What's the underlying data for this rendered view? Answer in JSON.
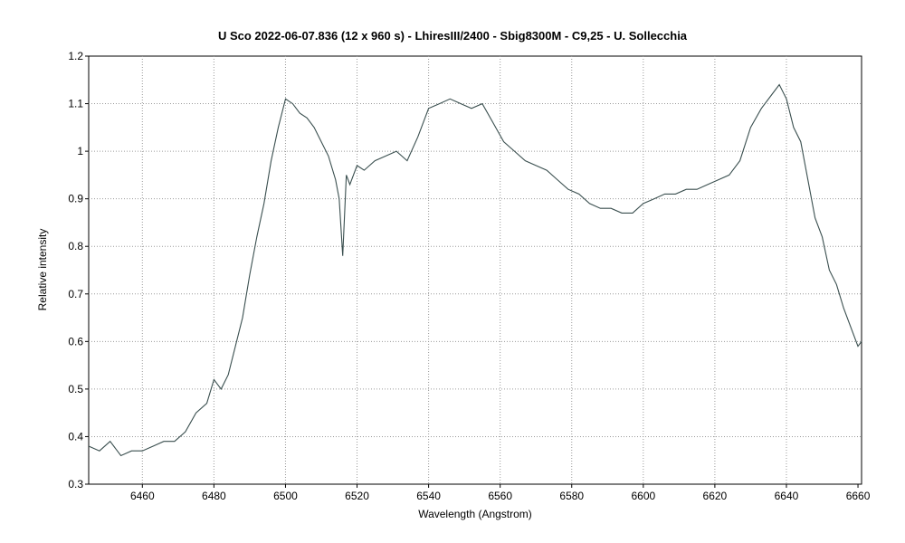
{
  "chart_data": {
    "type": "line",
    "title": "U Sco   2022-06-07.836   (12 x 960 s) - LhiresIII/2400 - Sbig8300M - C9,25 - U. Sollecchia",
    "xlabel": "Wavelength (Angstrom)",
    "ylabel": "Relative intensity",
    "xlim": [
      6445,
      6661
    ],
    "ylim": [
      0.3,
      1.2
    ],
    "grid": true,
    "line_color": "#3a4f4f",
    "x_ticks": [
      "6460",
      "6480",
      "6500",
      "6520",
      "6540",
      "6560",
      "6580",
      "6600",
      "6620",
      "6640",
      "6660"
    ],
    "y_ticks": [
      "0.3",
      "0.4",
      "0.5",
      "0.6",
      "0.7",
      "0.8",
      "0.9",
      "1",
      "1.1",
      "1.2"
    ],
    "series": [
      {
        "x": [
          6445,
          6448,
          6451,
          6454,
          6457,
          6460,
          6463,
          6466,
          6469,
          6472,
          6475,
          6478,
          6480,
          6482,
          6484,
          6486,
          6488,
          6490,
          6492,
          6494,
          6496,
          6498,
          6500,
          6502,
          6504,
          6506,
          6508,
          6510,
          6512,
          6514,
          6515,
          6516,
          6517,
          6518,
          6520,
          6522,
          6525,
          6528,
          6531,
          6534,
          6537,
          6540,
          6543,
          6546,
          6549,
          6552,
          6555,
          6558,
          6561,
          6564,
          6567,
          6570,
          6573,
          6576,
          6579,
          6582,
          6585,
          6588,
          6591,
          6594,
          6597,
          6600,
          6603,
          6606,
          6609,
          6612,
          6615,
          6618,
          6621,
          6624,
          6627,
          6630,
          6633,
          6636,
          6638,
          6640,
          6642,
          6644,
          6646,
          6648,
          6650,
          6652,
          6654,
          6656,
          6658,
          6660,
          6661
        ],
        "y": [
          0.38,
          0.37,
          0.39,
          0.36,
          0.37,
          0.37,
          0.38,
          0.39,
          0.39,
          0.41,
          0.45,
          0.47,
          0.52,
          0.5,
          0.53,
          0.59,
          0.65,
          0.74,
          0.82,
          0.89,
          0.98,
          1.05,
          1.11,
          1.1,
          1.08,
          1.07,
          1.05,
          1.02,
          0.99,
          0.94,
          0.9,
          0.78,
          0.95,
          0.93,
          0.97,
          0.96,
          0.98,
          0.99,
          1.0,
          0.98,
          1.03,
          1.09,
          1.1,
          1.11,
          1.1,
          1.09,
          1.1,
          1.06,
          1.02,
          1.0,
          0.98,
          0.97,
          0.96,
          0.94,
          0.92,
          0.91,
          0.89,
          0.88,
          0.88,
          0.87,
          0.87,
          0.89,
          0.9,
          0.91,
          0.91,
          0.92,
          0.92,
          0.93,
          0.94,
          0.95,
          0.98,
          1.05,
          1.09,
          1.12,
          1.14,
          1.11,
          1.05,
          1.02,
          0.94,
          0.86,
          0.82,
          0.75,
          0.72,
          0.67,
          0.63,
          0.59,
          0.6
        ]
      }
    ]
  }
}
